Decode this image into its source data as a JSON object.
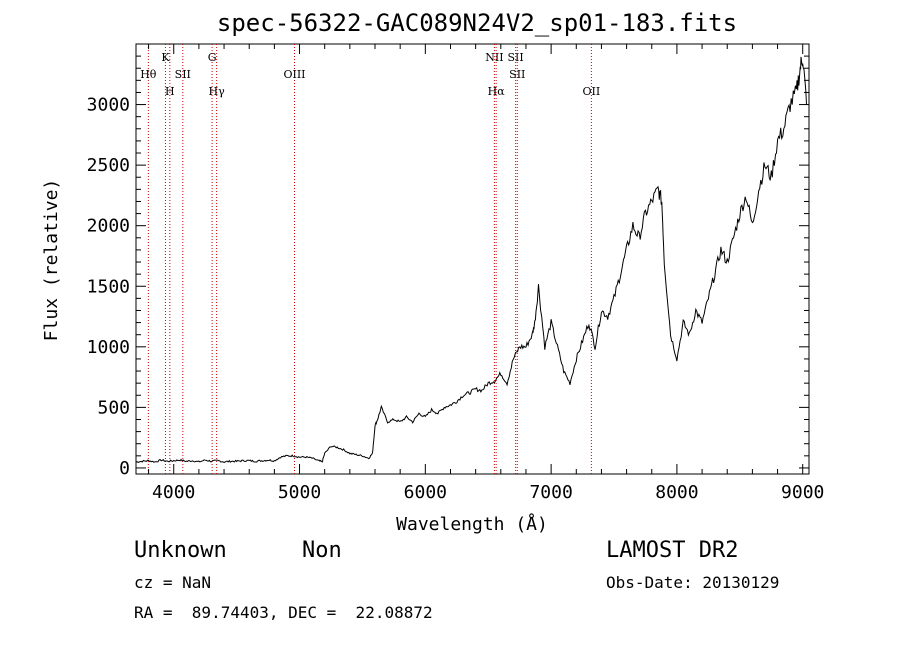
{
  "chart_data": {
    "type": "line",
    "title": "spec-56322-GAC089N24V2_sp01-183.fits",
    "xlabel": "Wavelength (Å)",
    "ylabel": "Flux (relative)",
    "xlim": [
      3700,
      9050
    ],
    "ylim": [
      -50,
      3500
    ],
    "x_ticks": [
      4000,
      5000,
      6000,
      7000,
      8000,
      9000
    ],
    "y_ticks": [
      0,
      500,
      1000,
      1500,
      2000,
      2500,
      3000
    ],
    "grid": false,
    "series": [
      {
        "x": [
          3700,
          3750,
          3800,
          3850,
          3900,
          3950,
          4000,
          4050,
          4100,
          4150,
          4200,
          4250,
          4300,
          4350,
          4400,
          4450,
          4500,
          4550,
          4600,
          4650,
          4700,
          4750,
          4800,
          4850,
          4900,
          4950,
          5000,
          5050,
          5100,
          5150,
          5180,
          5200,
          5250,
          5300,
          5350,
          5400,
          5450,
          5500,
          5550,
          5580,
          5600,
          5620,
          5650,
          5700,
          5750,
          5800,
          5850,
          5900,
          5950,
          6000,
          6050,
          6100,
          6150,
          6200,
          6250,
          6300,
          6350,
          6400,
          6450,
          6500,
          6550,
          6600,
          6650,
          6700,
          6750,
          6800,
          6850,
          6870,
          6900,
          6950,
          7000,
          7050,
          7100,
          7150,
          7200,
          7250,
          7300,
          7350,
          7400,
          7450,
          7500,
          7550,
          7600,
          7650,
          7700,
          7750,
          7800,
          7850,
          7880,
          7900,
          7950,
          8000,
          8050,
          8100,
          8150,
          8200,
          8250,
          8300,
          8350,
          8400,
          8450,
          8500,
          8550,
          8600,
          8650,
          8700,
          8750,
          8800,
          8850,
          8900,
          8950,
          8980,
          9000,
          9030
        ],
        "y": [
          50,
          55,
          60,
          50,
          65,
          55,
          60,
          65,
          55,
          60,
          50,
          65,
          55,
          60,
          50,
          55,
          55,
          60,
          60,
          55,
          60,
          65,
          60,
          90,
          100,
          100,
          90,
          90,
          80,
          60,
          50,
          120,
          180,
          170,
          150,
          120,
          110,
          100,
          80,
          120,
          350,
          400,
          500,
          380,
          400,
          380,
          420,
          380,
          450,
          420,
          480,
          450,
          500,
          520,
          550,
          600,
          620,
          650,
          640,
          700,
          720,
          780,
          700,
          900,
          1000,
          1000,
          1100,
          1200,
          1500,
          1000,
          1200,
          1000,
          800,
          700,
          900,
          1050,
          1200,
          1000,
          1300,
          1250,
          1400,
          1600,
          1800,
          2000,
          1900,
          2100,
          2200,
          2300,
          2200,
          1700,
          1100,
          900,
          1200,
          1100,
          1300,
          1200,
          1400,
          1600,
          1800,
          1700,
          1900,
          2100,
          2250,
          2000,
          2300,
          2500,
          2400,
          2700,
          2800,
          3000,
          3100,
          3300,
          3400,
          3000
        ]
      }
    ],
    "line_markers": [
      {
        "wavelength": 3798,
        "label": "Hθ",
        "tier": 2
      },
      {
        "wavelength": 3934,
        "label": "K",
        "tier": 1
      },
      {
        "wavelength": 3969,
        "label": "H",
        "tier": 3
      },
      {
        "wavelength": 4072,
        "label": "SII",
        "tier": 2
      },
      {
        "wavelength": 4305,
        "label": "G",
        "tier": 1
      },
      {
        "wavelength": 4341,
        "label": "Hγ",
        "tier": 3
      },
      {
        "wavelength": 4960,
        "label": "OIII",
        "tier": 2
      },
      {
        "wavelength": 6549,
        "label": "NII",
        "tier": 1
      },
      {
        "wavelength": 6563,
        "label": "Hα",
        "tier": 3
      },
      {
        "wavelength": 6718,
        "label": "SII",
        "tier": 1
      },
      {
        "wavelength": 6731,
        "label": "SII",
        "tier": 2
      },
      {
        "wavelength": 7320,
        "label": "OII",
        "tier": 3
      }
    ],
    "marker_color": "#d00000",
    "line_color": "#000000"
  },
  "info": {
    "class": "Unknown",
    "subclass": "Non",
    "survey": "LAMOST DR2",
    "cz": "cz = NaN",
    "obs_date": "Obs-Date: 20130129",
    "coords": "RA =  89.74403, DEC =  22.08872"
  }
}
